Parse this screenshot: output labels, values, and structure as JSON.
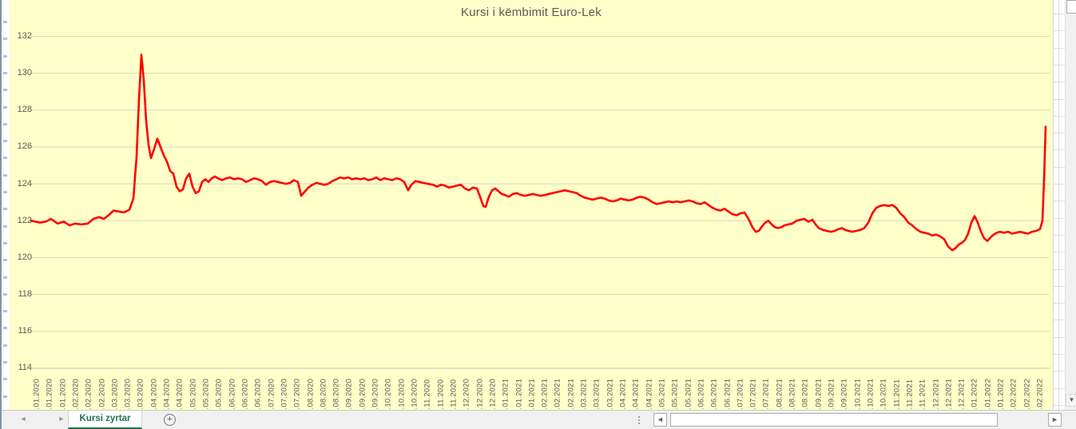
{
  "chart_data": {
    "type": "line",
    "title": "Kursi i këmbimit Euro-Lek",
    "xlabel": "",
    "ylabel": "",
    "ylim": [
      114,
      132
    ],
    "yticks": [
      114,
      116,
      118,
      120,
      122,
      124,
      126,
      128,
      130,
      132
    ],
    "grid": "horizontal",
    "legend_position": "none",
    "x_months": [
      "01.2020",
      "02.2020",
      "03.2020",
      "04.2020",
      "05.2020",
      "06.2020",
      "07.2020",
      "08.2020",
      "09.2020",
      "10.2020",
      "11.2020",
      "12.2020",
      "01.2021",
      "02.2021",
      "03.2021",
      "04.2021",
      "05.2021",
      "06.2021",
      "07.2021",
      "08.2021",
      "09.2021",
      "10.2021",
      "11.2021",
      "12.2021",
      "01.2022",
      "02.2022"
    ],
    "x_labels_per_month": 3,
    "x_label_prefix": ".",
    "colors": {
      "series": "#FF0000",
      "plot_bg": "#FFFFC9",
      "grid": "#D8D8C2",
      "axis": "#C2C2AC",
      "text": "#595959"
    },
    "series": [
      {
        "name": "Euro-Lek",
        "x_unit": "screenshot_px_time_axis",
        "points": [
          [
            37,
            122.0
          ],
          [
            48,
            121.9
          ],
          [
            55,
            121.95
          ],
          [
            62,
            122.1
          ],
          [
            70,
            121.85
          ],
          [
            78,
            121.95
          ],
          [
            85,
            121.75
          ],
          [
            92,
            121.85
          ],
          [
            100,
            121.8
          ],
          [
            108,
            121.85
          ],
          [
            115,
            122.1
          ],
          [
            122,
            122.2
          ],
          [
            128,
            122.1
          ],
          [
            134,
            122.3
          ],
          [
            140,
            122.55
          ],
          [
            147,
            122.5
          ],
          [
            153,
            122.45
          ],
          [
            160,
            122.6
          ],
          [
            165,
            123.2
          ],
          [
            169,
            125.5
          ],
          [
            172,
            128.6
          ],
          [
            175,
            131.0
          ],
          [
            178,
            129.6
          ],
          [
            181,
            127.4
          ],
          [
            184,
            126.1
          ],
          [
            187,
            125.4
          ],
          [
            191,
            125.9
          ],
          [
            195,
            126.45
          ],
          [
            199,
            126.0
          ],
          [
            203,
            125.55
          ],
          [
            207,
            125.2
          ],
          [
            211,
            124.7
          ],
          [
            215,
            124.55
          ],
          [
            219,
            123.85
          ],
          [
            223,
            123.6
          ],
          [
            227,
            123.7
          ],
          [
            231,
            124.3
          ],
          [
            235,
            124.55
          ],
          [
            239,
            123.85
          ],
          [
            243,
            123.5
          ],
          [
            247,
            123.6
          ],
          [
            251,
            124.1
          ],
          [
            255,
            124.25
          ],
          [
            259,
            124.1
          ],
          [
            263,
            124.3
          ],
          [
            267,
            124.4
          ],
          [
            271,
            124.3
          ],
          [
            276,
            124.2
          ],
          [
            281,
            124.3
          ],
          [
            286,
            124.35
          ],
          [
            291,
            124.25
          ],
          [
            296,
            124.3
          ],
          [
            301,
            124.25
          ],
          [
            306,
            124.1
          ],
          [
            311,
            124.2
          ],
          [
            316,
            124.3
          ],
          [
            321,
            124.25
          ],
          [
            326,
            124.15
          ],
          [
            331,
            123.95
          ],
          [
            336,
            124.1
          ],
          [
            341,
            124.15
          ],
          [
            346,
            124.1
          ],
          [
            351,
            124.05
          ],
          [
            356,
            124.0
          ],
          [
            361,
            124.05
          ],
          [
            366,
            124.2
          ],
          [
            371,
            124.1
          ],
          [
            375,
            123.35
          ],
          [
            379,
            123.55
          ],
          [
            384,
            123.8
          ],
          [
            389,
            123.95
          ],
          [
            394,
            124.05
          ],
          [
            399,
            124.0
          ],
          [
            404,
            123.95
          ],
          [
            409,
            124.0
          ],
          [
            414,
            124.15
          ],
          [
            419,
            124.25
          ],
          [
            424,
            124.35
          ],
          [
            429,
            124.3
          ],
          [
            434,
            124.35
          ],
          [
            439,
            124.25
          ],
          [
            444,
            124.3
          ],
          [
            449,
            124.25
          ],
          [
            454,
            124.3
          ],
          [
            459,
            124.2
          ],
          [
            464,
            124.25
          ],
          [
            469,
            124.35
          ],
          [
            474,
            124.2
          ],
          [
            479,
            124.3
          ],
          [
            484,
            124.25
          ],
          [
            489,
            124.2
          ],
          [
            494,
            124.3
          ],
          [
            499,
            124.25
          ],
          [
            504,
            124.1
          ],
          [
            509,
            123.65
          ],
          [
            513,
            123.95
          ],
          [
            518,
            124.15
          ],
          [
            523,
            124.1
          ],
          [
            528,
            124.05
          ],
          [
            534,
            124.0
          ],
          [
            540,
            123.95
          ],
          [
            545,
            123.85
          ],
          [
            550,
            123.95
          ],
          [
            555,
            123.9
          ],
          [
            560,
            123.8
          ],
          [
            565,
            123.85
          ],
          [
            570,
            123.9
          ],
          [
            575,
            123.95
          ],
          [
            580,
            123.75
          ],
          [
            585,
            123.65
          ],
          [
            590,
            123.8
          ],
          [
            595,
            123.75
          ],
          [
            599,
            123.3
          ],
          [
            603,
            122.8
          ],
          [
            606,
            122.75
          ],
          [
            610,
            123.3
          ],
          [
            614,
            123.65
          ],
          [
            618,
            123.75
          ],
          [
            622,
            123.6
          ],
          [
            626,
            123.45
          ],
          [
            630,
            123.4
          ],
          [
            635,
            123.3
          ],
          [
            640,
            123.45
          ],
          [
            645,
            123.5
          ],
          [
            650,
            123.4
          ],
          [
            655,
            123.35
          ],
          [
            660,
            123.4
          ],
          [
            665,
            123.45
          ],
          [
            670,
            123.4
          ],
          [
            675,
            123.35
          ],
          [
            680,
            123.4
          ],
          [
            685,
            123.45
          ],
          [
            690,
            123.5
          ],
          [
            695,
            123.55
          ],
          [
            700,
            123.6
          ],
          [
            705,
            123.65
          ],
          [
            710,
            123.6
          ],
          [
            715,
            123.55
          ],
          [
            720,
            123.5
          ],
          [
            725,
            123.35
          ],
          [
            730,
            123.25
          ],
          [
            735,
            123.2
          ],
          [
            740,
            123.15
          ],
          [
            745,
            123.2
          ],
          [
            750,
            123.25
          ],
          [
            755,
            123.2
          ],
          [
            760,
            123.1
          ],
          [
            765,
            123.05
          ],
          [
            770,
            123.1
          ],
          [
            775,
            123.2
          ],
          [
            780,
            123.15
          ],
          [
            785,
            123.1
          ],
          [
            790,
            123.15
          ],
          [
            795,
            123.25
          ],
          [
            800,
            123.3
          ],
          [
            805,
            123.25
          ],
          [
            810,
            123.15
          ],
          [
            815,
            123.0
          ],
          [
            820,
            122.9
          ],
          [
            825,
            122.95
          ],
          [
            830,
            123.0
          ],
          [
            835,
            123.05
          ],
          [
            840,
            123.0
          ],
          [
            845,
            123.05
          ],
          [
            850,
            123.0
          ],
          [
            855,
            123.05
          ],
          [
            860,
            123.1
          ],
          [
            865,
            123.05
          ],
          [
            870,
            122.95
          ],
          [
            875,
            122.9
          ],
          [
            880,
            123.0
          ],
          [
            885,
            122.85
          ],
          [
            890,
            122.7
          ],
          [
            895,
            122.6
          ],
          [
            900,
            122.55
          ],
          [
            905,
            122.65
          ],
          [
            910,
            122.5
          ],
          [
            915,
            122.35
          ],
          [
            920,
            122.3
          ],
          [
            925,
            122.4
          ],
          [
            930,
            122.45
          ],
          [
            935,
            122.1
          ],
          [
            940,
            121.65
          ],
          [
            944,
            121.4
          ],
          [
            948,
            121.45
          ],
          [
            952,
            121.7
          ],
          [
            956,
            121.9
          ],
          [
            960,
            122.0
          ],
          [
            964,
            121.8
          ],
          [
            968,
            121.65
          ],
          [
            972,
            121.6
          ],
          [
            976,
            121.65
          ],
          [
            980,
            121.75
          ],
          [
            985,
            121.8
          ],
          [
            990,
            121.85
          ],
          [
            995,
            122.0
          ],
          [
            1000,
            122.05
          ],
          [
            1005,
            122.1
          ],
          [
            1010,
            121.95
          ],
          [
            1015,
            122.05
          ],
          [
            1019,
            121.8
          ],
          [
            1023,
            121.6
          ],
          [
            1028,
            121.5
          ],
          [
            1033,
            121.45
          ],
          [
            1038,
            121.4
          ],
          [
            1043,
            121.45
          ],
          [
            1048,
            121.55
          ],
          [
            1052,
            121.6
          ],
          [
            1056,
            121.5
          ],
          [
            1060,
            121.45
          ],
          [
            1065,
            121.4
          ],
          [
            1070,
            121.45
          ],
          [
            1075,
            121.5
          ],
          [
            1080,
            121.6
          ],
          [
            1085,
            121.9
          ],
          [
            1090,
            122.4
          ],
          [
            1095,
            122.7
          ],
          [
            1100,
            122.8
          ],
          [
            1105,
            122.85
          ],
          [
            1110,
            122.8
          ],
          [
            1115,
            122.85
          ],
          [
            1120,
            122.7
          ],
          [
            1125,
            122.4
          ],
          [
            1130,
            122.2
          ],
          [
            1135,
            121.9
          ],
          [
            1140,
            121.75
          ],
          [
            1145,
            121.55
          ],
          [
            1150,
            121.4
          ],
          [
            1155,
            121.35
          ],
          [
            1160,
            121.3
          ],
          [
            1165,
            121.2
          ],
          [
            1170,
            121.25
          ],
          [
            1175,
            121.15
          ],
          [
            1180,
            121.0
          ],
          [
            1185,
            120.6
          ],
          [
            1190,
            120.4
          ],
          [
            1194,
            120.5
          ],
          [
            1198,
            120.7
          ],
          [
            1202,
            120.8
          ],
          [
            1206,
            120.95
          ],
          [
            1210,
            121.3
          ],
          [
            1214,
            121.9
          ],
          [
            1218,
            122.25
          ],
          [
            1222,
            121.9
          ],
          [
            1226,
            121.4
          ],
          [
            1230,
            121.05
          ],
          [
            1234,
            120.9
          ],
          [
            1238,
            121.1
          ],
          [
            1242,
            121.25
          ],
          [
            1246,
            121.35
          ],
          [
            1250,
            121.4
          ],
          [
            1255,
            121.35
          ],
          [
            1260,
            121.4
          ],
          [
            1265,
            121.3
          ],
          [
            1270,
            121.35
          ],
          [
            1275,
            121.4
          ],
          [
            1280,
            121.35
          ],
          [
            1285,
            121.3
          ],
          [
            1290,
            121.4
          ],
          [
            1295,
            121.45
          ],
          [
            1300,
            121.55
          ],
          [
            1303,
            122.0
          ],
          [
            1305,
            124.2
          ],
          [
            1307,
            127.1
          ]
        ]
      }
    ]
  },
  "window": {
    "tab_bar": {
      "sheet_tabs": [
        {
          "label": "Kursi zyrtar",
          "active": true
        }
      ],
      "add_sheet_glyph": "+",
      "accent_color": "#217346"
    },
    "icons": {
      "tab_nav_left": "◄",
      "tab_nav_right": "►",
      "scroll_down": "▼",
      "scroll_left": "◄",
      "scroll_right": "►"
    }
  }
}
